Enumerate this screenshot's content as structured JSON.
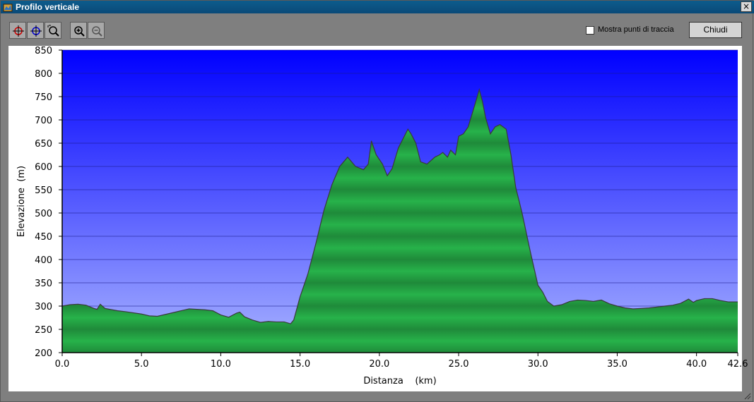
{
  "window": {
    "title": "Profilo verticale",
    "close_symbol": "×"
  },
  "toolbar": {
    "buttons": [
      {
        "name": "target-red-icon"
      },
      {
        "name": "target-blue-icon"
      },
      {
        "name": "zoom-area-icon"
      },
      {
        "name": "zoom-in-icon"
      },
      {
        "name": "zoom-out-icon"
      }
    ],
    "show_points_label": "Mostra punti di traccia",
    "show_points_checked": false,
    "close_label": "Chiudi"
  },
  "chart_data": {
    "type": "area",
    "title": "",
    "xlabel": "Distanza    (km)",
    "ylabel": "Elevazione  (m)",
    "xlim": [
      0,
      42.6
    ],
    "ylim": [
      200,
      850
    ],
    "xticks": [
      0,
      5,
      10,
      15,
      20,
      25,
      30,
      35,
      40,
      42.6
    ],
    "xtick_labels": [
      "0.0",
      "5.0",
      "10.0",
      "15.0",
      "20.0",
      "25.0",
      "30.0",
      "35.0",
      "40.0",
      "42.6"
    ],
    "yticks": [
      200,
      250,
      300,
      350,
      400,
      450,
      500,
      550,
      600,
      650,
      700,
      750,
      800,
      850
    ],
    "ytick_labels": [
      "200",
      "250",
      "300",
      "350",
      "400",
      "450",
      "500",
      "550",
      "600",
      "650",
      "700",
      "750",
      "800",
      "850"
    ],
    "grid": true,
    "colors": {
      "sky_top": "#0000ff",
      "sky_bottom": "#a9b4ff",
      "fill_dark": "#1f8a3a",
      "fill_light": "#27b24a",
      "outline": "#3a3a3a"
    },
    "series": [
      {
        "x": [
          0,
          0.5,
          1.0,
          1.5,
          2.0,
          2.2,
          2.4,
          2.5,
          2.7,
          3.0,
          3.5,
          4.0,
          5.0,
          5.5,
          6.0,
          7.0,
          7.5,
          8.0,
          9.0,
          9.5,
          10.0,
          10.5,
          11.0,
          11.2,
          11.5,
          12.0,
          12.5,
          13.0,
          13.5,
          14.0,
          14.4,
          14.6,
          15.0,
          15.5,
          16.0,
          16.5,
          17.0,
          17.5,
          18.0,
          18.5,
          19.0,
          19.3,
          19.5,
          19.8,
          20.2,
          20.5,
          20.8,
          21.2,
          21.5,
          21.8,
          22.0,
          22.3,
          22.6,
          23.0,
          23.5,
          23.8,
          24.0,
          24.3,
          24.5,
          24.8,
          25.0,
          25.3,
          25.6,
          26.0,
          26.3,
          26.5,
          26.7,
          27.0,
          27.3,
          27.6,
          28.0,
          28.3,
          28.6,
          29.0,
          29.5,
          30.0,
          30.3,
          30.6,
          31.0,
          31.5,
          32.0,
          32.5,
          33.0,
          33.5,
          34.0,
          34.5,
          35.0,
          35.5,
          36.0,
          36.5,
          37.0,
          37.5,
          38.0,
          38.5,
          39.0,
          39.5,
          39.8,
          40.0,
          40.5,
          41.0,
          41.5,
          42.0,
          42.6
        ],
        "y": [
          300,
          303,
          304,
          302,
          295,
          293,
          304,
          301,
          295,
          293,
          290,
          288,
          283,
          279,
          278,
          286,
          290,
          294,
          292,
          290,
          281,
          276,
          285,
          287,
          277,
          270,
          265,
          267,
          266,
          266,
          262,
          270,
          320,
          370,
          435,
          505,
          560,
          600,
          620,
          600,
          593,
          605,
          655,
          625,
          605,
          580,
          595,
          640,
          660,
          680,
          670,
          650,
          610,
          605,
          620,
          625,
          630,
          620,
          635,
          625,
          665,
          670,
          685,
          730,
          765,
          740,
          705,
          670,
          685,
          690,
          680,
          625,
          555,
          500,
          420,
          345,
          330,
          310,
          300,
          303,
          310,
          313,
          312,
          310,
          313,
          305,
          300,
          296,
          294,
          295,
          296,
          298,
          300,
          302,
          306,
          315,
          308,
          312,
          316,
          316,
          312,
          309,
          309
        ]
      }
    ]
  }
}
